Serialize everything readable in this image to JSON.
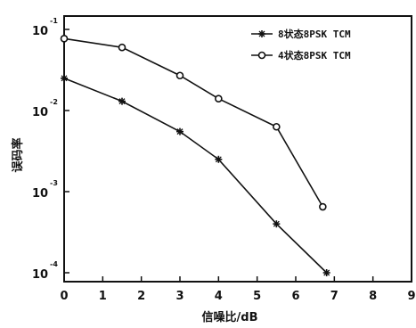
{
  "chart_data": {
    "type": "line",
    "title": "",
    "xlabel": "信噪比/dB",
    "ylabel": "误码率",
    "x_scale": "linear",
    "y_scale": "log",
    "xlim": [
      0,
      9
    ],
    "ylim": [
      0.0001,
      0.1
    ],
    "x_ticks": [
      "0",
      "1",
      "2",
      "3",
      "4",
      "5",
      "6",
      "7",
      "8",
      "9"
    ],
    "y_ticks": [
      {
        "base": "10",
        "exp": "-1",
        "value": 0.1
      },
      {
        "base": "10",
        "exp": "-2",
        "value": 0.01
      },
      {
        "base": "10",
        "exp": "-3",
        "value": 0.001
      },
      {
        "base": "10",
        "exp": "-4",
        "value": 0.0001
      }
    ],
    "grid": false,
    "legend_position": "top-right",
    "series": [
      {
        "name": "8状态8PSK TCM",
        "marker": "star",
        "x": [
          0,
          1.5,
          3,
          4,
          5.5,
          6.8
        ],
        "y": [
          0.025,
          0.013,
          0.0055,
          0.0025,
          0.0004,
          0.0001
        ]
      },
      {
        "name": "4状态8PSK TCM",
        "marker": "circle",
        "x": [
          0,
          1.5,
          3,
          4,
          5.5,
          6.7
        ],
        "y": [
          0.077,
          0.06,
          0.027,
          0.014,
          0.0063,
          0.00065
        ]
      }
    ]
  }
}
